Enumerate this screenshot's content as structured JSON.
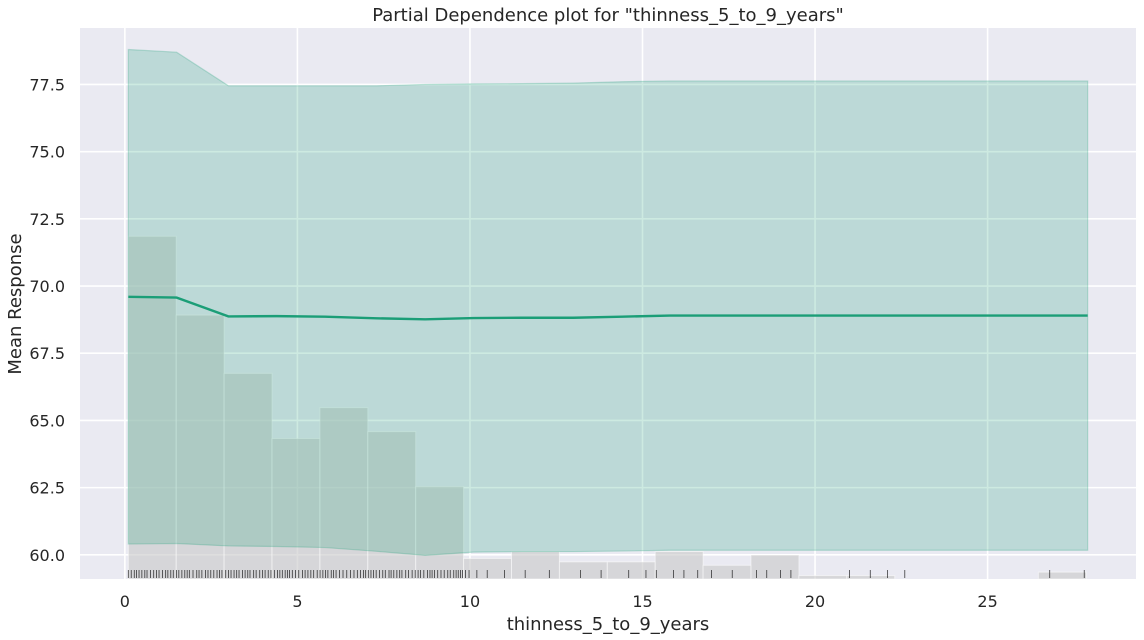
{
  "chart_data": {
    "type": "line",
    "title": "Partial Dependence plot for \"thinness_5_to_9_years\"",
    "xlabel": "thinness_5_to_9_years",
    "ylabel": "Mean Response",
    "xlim": [
      -1.3,
      29.3
    ],
    "ylim": [
      59.1,
      79.6
    ],
    "x_ticks": [
      0,
      5,
      10,
      15,
      20,
      25
    ],
    "x_tick_labels": [
      "0",
      "5",
      "10",
      "15",
      "20",
      "25"
    ],
    "y_ticks": [
      60.0,
      62.5,
      65.0,
      67.5,
      70.0,
      72.5,
      75.0,
      77.5
    ],
    "y_tick_labels": [
      "60.0",
      "62.5",
      "65.0",
      "67.5",
      "70.0",
      "72.5",
      "75.0",
      "77.5"
    ],
    "grid": true,
    "colors": {
      "background": "#EAEAF2",
      "grid": "#FFFFFF",
      "line": "#1B9E77",
      "band": "#1B9E77",
      "hist": "#C8C8C8",
      "rug": "#000000"
    },
    "series": [
      {
        "x": [
          0.1,
          1.5,
          3.0,
          4.4,
          5.8,
          7.3,
          8.7,
          10.1,
          11.5,
          13.0,
          14.4,
          15.8,
          17.2,
          18.7,
          20.1,
          21.5,
          23.0,
          24.4,
          25.8,
          27.9
        ],
        "values": [
          69.6,
          69.57,
          68.87,
          68.88,
          68.86,
          68.8,
          68.76,
          68.81,
          68.82,
          68.82,
          68.86,
          68.9,
          68.9,
          68.9,
          68.9,
          68.9,
          68.9,
          68.9,
          68.9,
          68.9
        ],
        "upper": [
          78.8,
          78.7,
          77.45,
          77.45,
          77.45,
          77.45,
          77.5,
          77.52,
          77.53,
          77.55,
          77.6,
          77.63,
          77.63,
          77.63,
          77.63,
          77.63,
          77.63,
          77.63,
          77.63,
          77.63
        ],
        "lower": [
          60.4,
          60.42,
          60.33,
          60.31,
          60.27,
          60.13,
          59.98,
          60.1,
          60.12,
          60.12,
          60.14,
          60.17,
          60.17,
          60.17,
          60.17,
          60.17,
          60.17,
          60.17,
          60.17,
          60.17
        ]
      }
    ],
    "histogram": {
      "bin_edges": [
        0.1,
        1.488,
        2.876,
        4.264,
        5.652,
        7.04,
        8.428,
        9.816,
        11.204,
        12.592,
        13.98,
        15.368,
        16.756,
        18.144,
        19.532,
        20.92,
        22.308,
        23.696,
        25.084,
        26.472,
        27.86
      ],
      "relative_heights": [
        1.0,
        0.77,
        0.6,
        0.41,
        0.5,
        0.43,
        0.27,
        0.06,
        0.08,
        0.05,
        0.05,
        0.08,
        0.04,
        0.07,
        0.01,
        0.01,
        0.0,
        0.0,
        0.0,
        0.02
      ]
    },
    "rug": {
      "dense_range": [
        0.1,
        10.0
      ],
      "sparse_x": [
        10.2,
        10.5,
        11.0,
        11.6,
        12.3,
        13.2,
        13.8,
        14.6,
        15.1,
        15.4,
        15.9,
        16.2,
        16.6,
        17.0,
        17.6,
        18.3,
        18.6,
        19.0,
        19.3,
        21.0,
        21.6,
        22.1,
        22.6,
        26.8,
        27.8
      ]
    }
  }
}
